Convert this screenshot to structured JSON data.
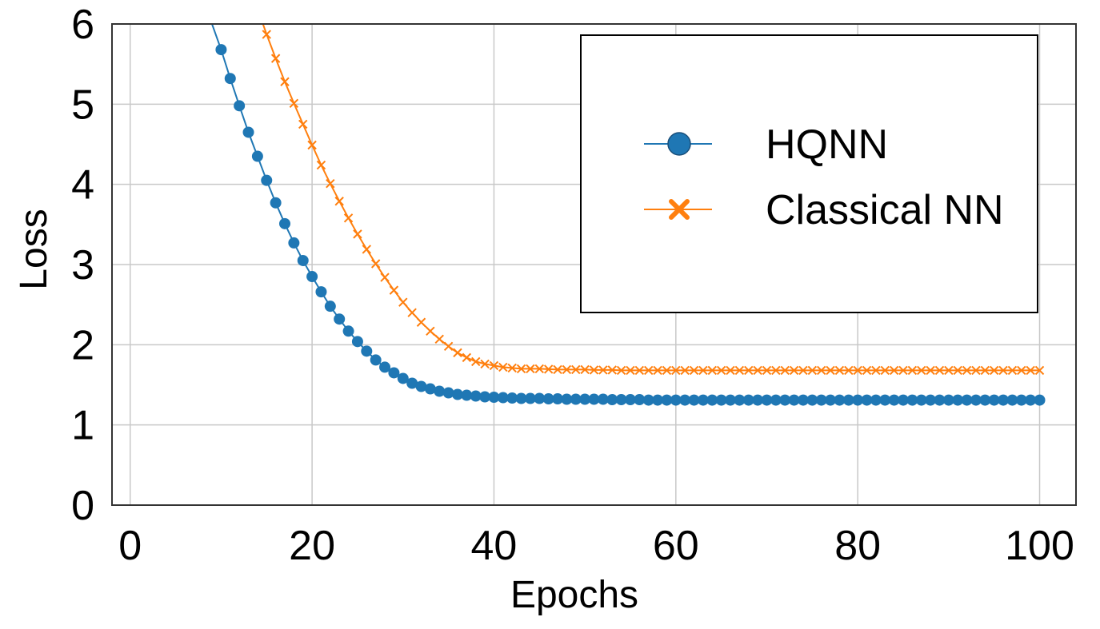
{
  "colors": {
    "hqnn": "#1f77b4",
    "classical": "#ff7f0e",
    "grid": "#c8c8c8",
    "axis": "#333333"
  },
  "chart_data": {
    "type": "line",
    "xlabel": "Epochs",
    "ylabel": "Loss",
    "xlim": [
      -2,
      104
    ],
    "ylim": [
      0,
      6
    ],
    "xticks": [
      0,
      20,
      40,
      60,
      80,
      100
    ],
    "yticks": [
      0,
      1,
      2,
      3,
      4,
      5,
      6
    ],
    "xtick_labels": [
      "0",
      "20",
      "40",
      "60",
      "80",
      "100"
    ],
    "ytick_labels": [
      "0",
      "1",
      "2",
      "3",
      "4",
      "5",
      "6"
    ],
    "grid": true,
    "legend_position": "top-right",
    "x": [
      10,
      11,
      12,
      13,
      14,
      15,
      16,
      17,
      18,
      19,
      20,
      21,
      22,
      23,
      24,
      25,
      26,
      27,
      28,
      29,
      30,
      31,
      32,
      33,
      34,
      35,
      36,
      37,
      38,
      39,
      40,
      41,
      42,
      43,
      44,
      45,
      46,
      47,
      48,
      49,
      50,
      51,
      52,
      53,
      54,
      55,
      56,
      57,
      58,
      59,
      60,
      61,
      62,
      63,
      64,
      65,
      66,
      67,
      68,
      69,
      70,
      71,
      72,
      73,
      74,
      75,
      76,
      77,
      78,
      79,
      80,
      81,
      82,
      83,
      84,
      85,
      86,
      87,
      88,
      89,
      90,
      91,
      92,
      93,
      94,
      95,
      96,
      97,
      98,
      99,
      100
    ],
    "series": [
      {
        "name": "HQNN",
        "marker": "circle",
        "values": [
          5.68,
          5.32,
          4.98,
          4.65,
          4.35,
          4.05,
          3.77,
          3.51,
          3.27,
          3.05,
          2.85,
          2.66,
          2.48,
          2.32,
          2.17,
          2.04,
          1.92,
          1.81,
          1.72,
          1.65,
          1.58,
          1.52,
          1.48,
          1.45,
          1.42,
          1.4,
          1.38,
          1.37,
          1.36,
          1.35,
          1.345,
          1.34,
          1.335,
          1.33,
          1.33,
          1.33,
          1.325,
          1.325,
          1.32,
          1.32,
          1.32,
          1.32,
          1.32,
          1.315,
          1.315,
          1.315,
          1.315,
          1.31,
          1.31,
          1.31,
          1.31,
          1.31,
          1.31,
          1.31,
          1.31,
          1.31,
          1.31,
          1.31,
          1.31,
          1.31,
          1.31,
          1.31,
          1.31,
          1.31,
          1.31,
          1.31,
          1.31,
          1.31,
          1.31,
          1.31,
          1.31,
          1.31,
          1.31,
          1.31,
          1.31,
          1.31,
          1.31,
          1.31,
          1.31,
          1.31,
          1.31,
          1.31,
          1.31,
          1.31,
          1.31,
          1.31,
          1.31,
          1.31,
          1.31,
          1.31,
          1.31
        ]
      },
      {
        "name": "Classical NN",
        "marker": "x",
        "values": [
          null,
          null,
          null,
          null,
          null,
          5.87,
          5.57,
          5.28,
          5.01,
          4.75,
          4.49,
          4.24,
          4.01,
          3.79,
          3.58,
          3.38,
          3.19,
          3.01,
          2.84,
          2.68,
          2.53,
          2.4,
          2.28,
          2.17,
          2.07,
          1.98,
          1.9,
          1.84,
          1.79,
          1.76,
          1.74,
          1.72,
          1.71,
          1.7,
          1.7,
          1.7,
          1.695,
          1.69,
          1.69,
          1.69,
          1.69,
          1.685,
          1.685,
          1.685,
          1.68,
          1.68,
          1.68,
          1.68,
          1.68,
          1.68,
          1.68,
          1.68,
          1.68,
          1.68,
          1.68,
          1.68,
          1.68,
          1.68,
          1.68,
          1.68,
          1.68,
          1.68,
          1.68,
          1.68,
          1.68,
          1.68,
          1.68,
          1.68,
          1.68,
          1.68,
          1.68,
          1.68,
          1.68,
          1.68,
          1.68,
          1.68,
          1.68,
          1.68,
          1.68,
          1.68,
          1.68,
          1.68,
          1.68,
          1.68,
          1.68,
          1.68,
          1.68,
          1.68,
          1.68,
          1.68,
          1.68
        ]
      }
    ],
    "leading_curves": [
      {
        "series": "HQNN",
        "x": [
          9,
          10
        ],
        "values": [
          6.0,
          5.68
        ]
      },
      {
        "series": "Classical NN",
        "x": [
          14.6,
          15
        ],
        "values": [
          6.0,
          5.87
        ]
      }
    ]
  }
}
